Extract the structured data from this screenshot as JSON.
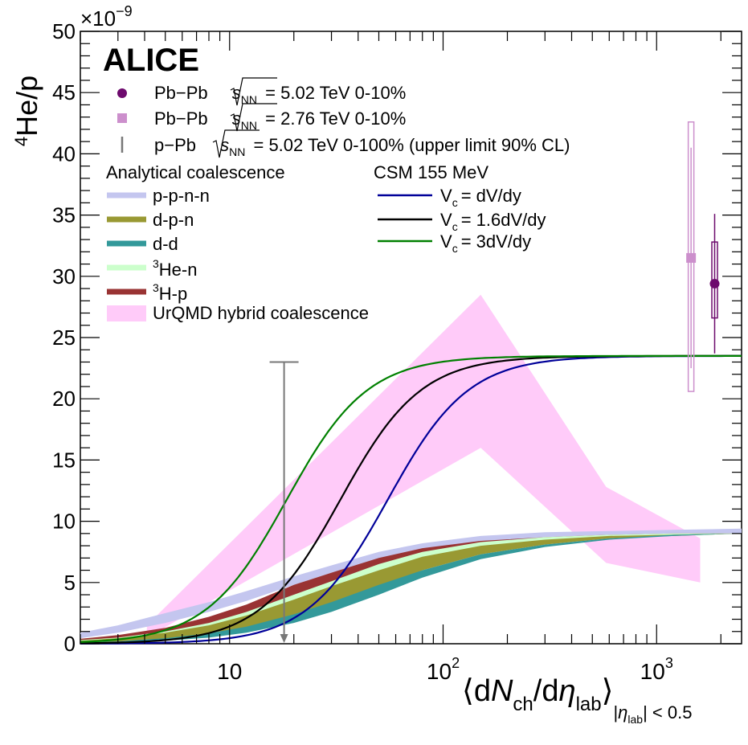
{
  "chart_data": {
    "type": "line",
    "experiment": "ALICE",
    "ylabel_pre": "4",
    "ylabel_main": "He/p",
    "yexp_prefix": "×10",
    "yexp_power": "−9",
    "xscale": "log",
    "xlim": [
      2,
      2500
    ],
    "ylim": [
      0,
      50
    ],
    "xticks": [
      {
        "value": 10,
        "base": "10",
        "power": ""
      },
      {
        "value": 100,
        "base": "10",
        "power": "2"
      },
      {
        "value": 1000,
        "base": "10",
        "power": "3"
      }
    ],
    "yticks": [
      0,
      5,
      10,
      15,
      20,
      25,
      30,
      35,
      40,
      45,
      50
    ],
    "xlabel": {
      "open": "⟨d",
      "N": "N",
      "ch": "ch",
      "slash": "/d",
      "eta": "η",
      "lab": "lab",
      "close": "⟩",
      "cond_pre": "|",
      "cond_eta": "η",
      "cond_lab": "lab",
      "cond_post": "| < 0.5"
    },
    "legend_data": [
      {
        "label": "Pb−Pb",
        "energy": "= 5.02 TeV 0-10%",
        "marker": "circle",
        "color": "#6d0a6d"
      },
      {
        "label": "Pb−Pb",
        "energy": "= 2.76 TeV 0-10%",
        "marker": "square",
        "color": "#cc8fcc"
      },
      {
        "label": "p−Pb",
        "energy": "= 5.02 TeV 0-100% (upper limit 90% CL)",
        "marker": "bar",
        "color": "#777777"
      }
    ],
    "sqrt_s": "s",
    "sqrt_nn": "NN",
    "coalescence_title": "Analytical coalescence",
    "coalescence_series": [
      {
        "name": "p-p-n-n",
        "color": "#c4c6ef"
      },
      {
        "name": "d-p-n",
        "color": "#999933"
      },
      {
        "name": "d-d",
        "color": "#33999a"
      },
      {
        "name_pre": "3",
        "name": "He-n",
        "color": "#ccffcc"
      },
      {
        "name_pre": "3",
        "name": "H-p",
        "color": "#993333"
      }
    ],
    "urqmd_label": "UrQMD hybrid coalescence",
    "urqmd_color": "#ffcbf9",
    "csm_title": "CSM 155 MeV",
    "csm_series": [
      {
        "v": "V",
        "sub": "c",
        "name": "= dV/dy",
        "color": "#000099",
        "plateau": 23.5,
        "x_half": 55
      },
      {
        "v": "V",
        "sub": "c",
        "name": "= 1.6dV/dy",
        "color": "#000000",
        "plateau": 23.5,
        "x_half": 33
      },
      {
        "v": "V",
        "sub": "c",
        "name": "= 3dV/dy",
        "color": "#008000",
        "plateau": 23.5,
        "x_half": 18.5
      }
    ],
    "coalescence_bands": {
      "x": [
        2,
        3,
        5,
        8,
        12,
        20,
        30,
        50,
        80,
        150,
        300,
        600,
        1200,
        2500
      ],
      "pppn_lo": [
        0.45,
        0.9,
        1.7,
        2.6,
        3.5,
        4.8,
        5.8,
        6.9,
        7.7,
        8.3,
        8.7,
        8.9,
        9.0,
        9.0
      ],
      "pppn_hi": [
        0.9,
        1.5,
        2.5,
        3.4,
        4.3,
        5.5,
        6.4,
        7.5,
        8.2,
        8.8,
        9.1,
        9.2,
        9.3,
        9.4
      ],
      "hp_lo": [
        0.2,
        0.4,
        0.9,
        1.6,
        2.5,
        3.9,
        5.0,
        6.4,
        7.4,
        8.2,
        8.6,
        8.8,
        8.9,
        9.0
      ],
      "hp_hi": [
        0.4,
        0.7,
        1.3,
        2.2,
        3.2,
        4.8,
        5.8,
        7.0,
        7.8,
        8.4,
        8.7,
        8.9,
        9.0,
        9.0
      ],
      "hen_lo": [
        0.1,
        0.2,
        0.45,
        0.9,
        1.5,
        2.6,
        3.7,
        5.2,
        6.5,
        7.6,
        8.3,
        8.7,
        8.9,
        9.0
      ],
      "hen_hi": [
        0.3,
        0.5,
        1.0,
        1.7,
        2.6,
        4.0,
        5.1,
        6.5,
        7.5,
        8.3,
        8.7,
        8.9,
        9.0,
        9.0
      ],
      "dpn_lo": [
        0.05,
        0.12,
        0.3,
        0.6,
        1.1,
        2.1,
        3.1,
        4.6,
        6.0,
        7.3,
        8.1,
        8.6,
        8.8,
        9.0
      ],
      "dpn_hi": [
        0.25,
        0.45,
        0.9,
        1.5,
        2.3,
        3.6,
        4.7,
        6.0,
        7.1,
        8.0,
        8.5,
        8.8,
        8.9,
        9.0
      ],
      "dd_lo": [
        0.05,
        0.1,
        0.25,
        0.5,
        0.9,
        1.7,
        2.6,
        4.0,
        5.4,
        6.9,
        7.9,
        8.5,
        8.8,
        9.0
      ],
      "dd_hi": [
        0.1,
        0.2,
        0.45,
        0.85,
        1.4,
        2.4,
        3.4,
        4.8,
        6.0,
        7.3,
        8.1,
        8.6,
        8.9,
        9.0
      ]
    },
    "urqmd_band": {
      "upper": [
        [
          4.1,
          1.5
        ],
        [
          150,
          28.5
        ],
        [
          580,
          12.8
        ],
        [
          1600,
          8.6
        ]
      ],
      "lower": [
        [
          1600,
          5.0
        ],
        [
          580,
          6.6
        ],
        [
          150,
          16.0
        ],
        [
          4.1,
          0.5
        ]
      ]
    },
    "points": [
      {
        "series": "Pb−Pb 5.02 TeV",
        "x": 1870,
        "y": 29.4,
        "stat_err": 5.7,
        "sys_lo": 26.6,
        "sys_hi": 32.8,
        "color": "#6d0a6d"
      },
      {
        "series": "Pb−Pb 2.76 TeV",
        "x": 1450,
        "y": 31.5,
        "stat_err": 9.0,
        "sys_lo": 20.6,
        "sys_hi": 42.6,
        "color": "#cc8fcc"
      }
    ],
    "upper_limit": {
      "series": "p−Pb 5.02 TeV",
      "x": 18,
      "y": 23.0,
      "color": "#777777"
    }
  }
}
